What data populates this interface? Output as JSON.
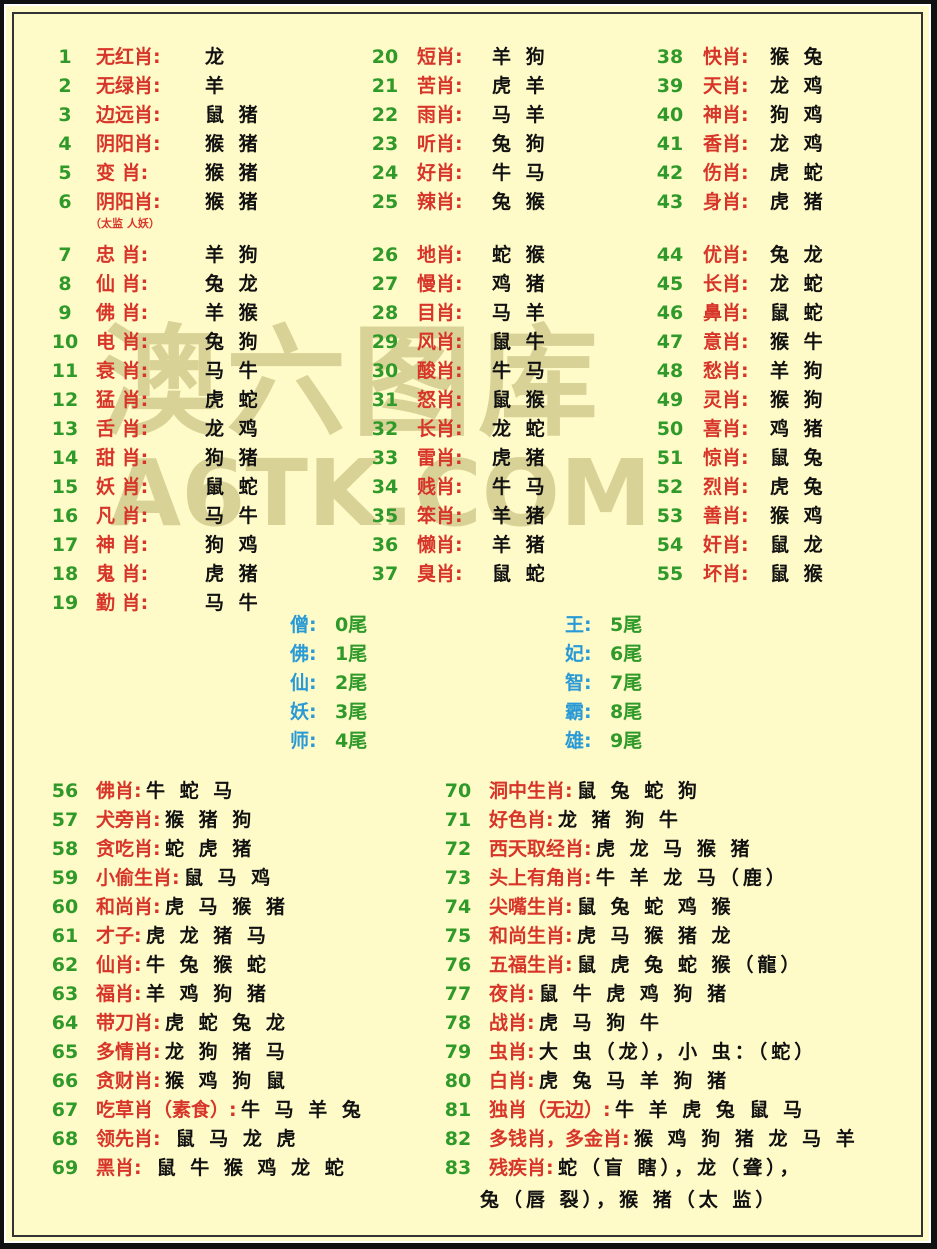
{
  "watermark": {
    "title": "澳六图库",
    "site": "A6TK.COM"
  },
  "top_columns": [
    [
      {
        "num": 1,
        "label": "无红肖:",
        "value": "龙"
      },
      {
        "num": 2,
        "label": "无绿肖:",
        "value": "羊"
      },
      {
        "num": 3,
        "label": "边远肖:",
        "value": "鼠 猪"
      },
      {
        "num": 4,
        "label": "阴阳肖:",
        "value": "猴 猪"
      },
      {
        "num": 5,
        "label": "变 肖:",
        "value": "猴 猪"
      },
      {
        "num": 6,
        "label": "阴阳肖:",
        "value": "猴 猪",
        "note": "（太监 人妖）"
      },
      {
        "num": 7,
        "label": "忠 肖:",
        "value": "羊 狗"
      },
      {
        "num": 8,
        "label": "仙 肖:",
        "value": "兔 龙"
      },
      {
        "num": 9,
        "label": "佛 肖:",
        "value": "羊 猴"
      },
      {
        "num": 10,
        "label": "电 肖:",
        "value": "兔 狗"
      },
      {
        "num": 11,
        "label": "衰 肖:",
        "value": "马 牛"
      },
      {
        "num": 12,
        "label": "猛 肖:",
        "value": "虎 蛇"
      },
      {
        "num": 13,
        "label": "舌 肖:",
        "value": "龙 鸡"
      },
      {
        "num": 14,
        "label": "甜 肖:",
        "value": "狗 猪"
      },
      {
        "num": 15,
        "label": "妖 肖:",
        "value": "鼠 蛇"
      },
      {
        "num": 16,
        "label": "凡 肖:",
        "value": "马 牛"
      },
      {
        "num": 17,
        "label": "神 肖:",
        "value": "狗 鸡"
      },
      {
        "num": 18,
        "label": "鬼 肖:",
        "value": "虎 猪"
      },
      {
        "num": 19,
        "label": "勤 肖:",
        "value": "马 牛"
      }
    ],
    [
      {
        "num": 20,
        "label": "短肖:",
        "value": "羊 狗"
      },
      {
        "num": 21,
        "label": "苦肖:",
        "value": "虎 羊"
      },
      {
        "num": 22,
        "label": "雨肖:",
        "value": "马 羊"
      },
      {
        "num": 23,
        "label": "听肖:",
        "value": "兔 狗"
      },
      {
        "num": 24,
        "label": "好肖:",
        "value": "牛 马"
      },
      {
        "num": 25,
        "label": "辣肖:",
        "value": "兔 猴"
      },
      {
        "num": 26,
        "label": "地肖:",
        "value": "蛇 猴"
      },
      {
        "num": 27,
        "label": "慢肖:",
        "value": "鸡 猪"
      },
      {
        "num": 28,
        "label": "目肖:",
        "value": "马 羊"
      },
      {
        "num": 29,
        "label": "风肖:",
        "value": "鼠 牛"
      },
      {
        "num": 30,
        "label": "酸肖:",
        "value": "牛 马"
      },
      {
        "num": 31,
        "label": "怒肖:",
        "value": "鼠 猴"
      },
      {
        "num": 32,
        "label": "长肖:",
        "value": "龙 蛇"
      },
      {
        "num": 33,
        "label": "雷肖:",
        "value": "虎 猪"
      },
      {
        "num": 34,
        "label": "贱肖:",
        "value": "牛 马"
      },
      {
        "num": 35,
        "label": "笨肖:",
        "value": "羊 猪"
      },
      {
        "num": 36,
        "label": "懒肖:",
        "value": "羊 猪"
      },
      {
        "num": 37,
        "label": "臭肖:",
        "value": "鼠 蛇"
      }
    ],
    [
      {
        "num": 38,
        "label": "快肖:",
        "value": "猴 兔"
      },
      {
        "num": 39,
        "label": "天肖:",
        "value": "龙 鸡"
      },
      {
        "num": 40,
        "label": "神肖:",
        "value": "狗 鸡"
      },
      {
        "num": 41,
        "label": "香肖:",
        "value": "龙 鸡"
      },
      {
        "num": 42,
        "label": "伤肖:",
        "value": "虎 蛇"
      },
      {
        "num": 43,
        "label": "身肖:",
        "value": "虎 猪"
      },
      {
        "num": 44,
        "label": "优肖:",
        "value": "兔 龙"
      },
      {
        "num": 45,
        "label": "长肖:",
        "value": "龙 蛇"
      },
      {
        "num": 46,
        "label": "鼻肖:",
        "value": "鼠 蛇"
      },
      {
        "num": 47,
        "label": "意肖:",
        "value": "猴 牛"
      },
      {
        "num": 48,
        "label": "愁肖:",
        "value": "羊 狗"
      },
      {
        "num": 49,
        "label": "灵肖:",
        "value": "猴 狗"
      },
      {
        "num": 50,
        "label": "喜肖:",
        "value": "鸡 猪"
      },
      {
        "num": 51,
        "label": "惊肖:",
        "value": "鼠 兔"
      },
      {
        "num": 52,
        "label": "烈肖:",
        "value": "虎 兔"
      },
      {
        "num": 53,
        "label": "善肖:",
        "value": "猴 鸡"
      },
      {
        "num": 54,
        "label": "奸肖:",
        "value": "鼠 龙"
      },
      {
        "num": 55,
        "label": "坏肖:",
        "value": "鼠 猴"
      }
    ]
  ],
  "tail_groups": [
    [
      {
        "label": "僧:",
        "value": "0尾"
      },
      {
        "label": "佛:",
        "value": "1尾"
      },
      {
        "label": "仙:",
        "value": "2尾"
      },
      {
        "label": "妖:",
        "value": "3尾"
      },
      {
        "label": "师:",
        "value": "4尾"
      }
    ],
    [
      {
        "label": "王:",
        "value": "5尾"
      },
      {
        "label": "妃:",
        "value": "6尾"
      },
      {
        "label": "智:",
        "value": "7尾"
      },
      {
        "label": "霸:",
        "value": "8尾"
      },
      {
        "label": "雄:",
        "value": "9尾"
      }
    ]
  ],
  "bottom_columns": [
    [
      {
        "num": 56,
        "label": "佛肖:",
        "value": "牛 蛇 马"
      },
      {
        "num": 57,
        "label": "犬旁肖:",
        "value": "猴 猪 狗"
      },
      {
        "num": 58,
        "label": "贪吃肖:",
        "value": "蛇 虎 猪"
      },
      {
        "num": 59,
        "label": "小偷生肖:",
        "value": "鼠 马 鸡"
      },
      {
        "num": 60,
        "label": "和尚肖:",
        "value": "虎 马 猴 猪"
      },
      {
        "num": 61,
        "label": "才子:",
        "value": "虎 龙 猪 马"
      },
      {
        "num": 62,
        "label": "仙肖:",
        "value": "牛 兔 猴 蛇"
      },
      {
        "num": 63,
        "label": "福肖:",
        "value": "羊 鸡 狗 猪"
      },
      {
        "num": 64,
        "label": "带刀肖:",
        "value": "虎 蛇 兔 龙"
      },
      {
        "num": 65,
        "label": "多情肖:",
        "value": "龙 狗 猪 马"
      },
      {
        "num": 66,
        "label": "贪财肖:",
        "value": "猴 鸡 狗 鼠"
      },
      {
        "num": 67,
        "label": "吃草肖（素食）:",
        "value": "牛 马 羊 兔"
      },
      {
        "num": 68,
        "label": "领先肖:",
        "value": " 鼠 马 龙 虎"
      },
      {
        "num": 69,
        "label": "黑肖:",
        "value": " 鼠 牛 猴 鸡 龙 蛇"
      }
    ],
    [
      {
        "num": 70,
        "label": "洞中生肖:",
        "value": "鼠 兔 蛇 狗"
      },
      {
        "num": 71,
        "label": "好色肖:",
        "value": "龙 猪 狗 牛"
      },
      {
        "num": 72,
        "label": "西天取经肖:",
        "value": "虎 龙 马 猴 猪"
      },
      {
        "num": 73,
        "label": "头上有角肖:",
        "value": "牛 羊 龙 马（鹿）"
      },
      {
        "num": 74,
        "label": "尖嘴生肖:",
        "value": "鼠 兔 蛇 鸡 猴"
      },
      {
        "num": 75,
        "label": "和尚生肖:",
        "value": "虎 马 猴 猪 龙"
      },
      {
        "num": 76,
        "label": "五福生肖:",
        "value": "鼠 虎 兔 蛇 猴（龍）"
      },
      {
        "num": 77,
        "label": "夜肖:",
        "value": "鼠 牛 虎 鸡 狗 猪"
      },
      {
        "num": 78,
        "label": "战肖:",
        "value": "虎 马 狗 牛"
      },
      {
        "num": 79,
        "label": "虫肖:",
        "value": "大 虫（龙），小 虫：（蛇）"
      },
      {
        "num": 80,
        "label": "白肖:",
        "value": "虎 兔 马 羊 狗 猪"
      },
      {
        "num": 81,
        "label": "独肖（无边）:",
        "value": "牛 羊 虎 兔 鼠 马"
      },
      {
        "num": 82,
        "label": "多钱肖，多金肖:",
        "value": "猴 鸡 狗 猪 龙 马 羊"
      },
      {
        "num": 83,
        "label": "残疾肖:",
        "value": [
          "蛇（盲 瞎），龙（聋），",
          "兔（唇 裂），猴 猪（太 监）"
        ]
      }
    ]
  ]
}
